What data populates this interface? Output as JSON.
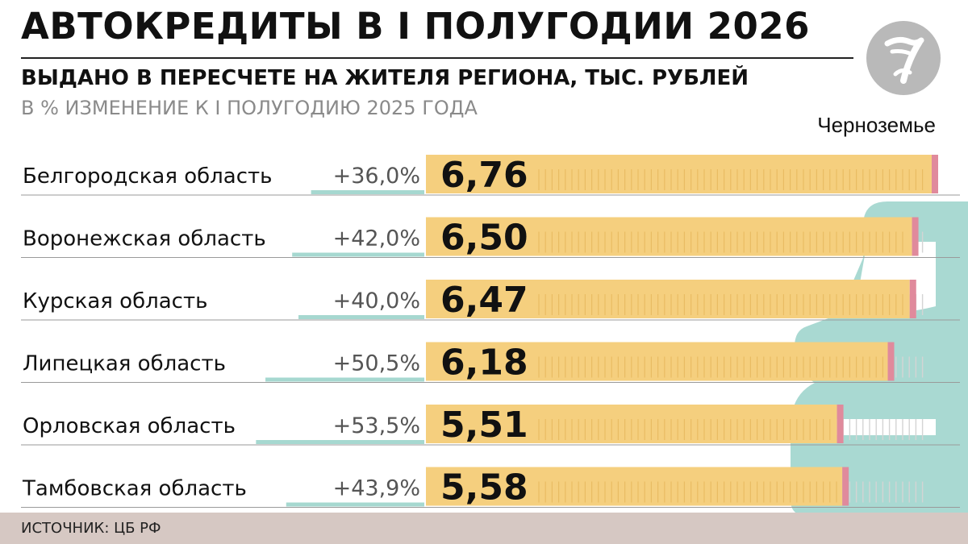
{
  "header": {
    "title": "АВТОКРЕДИТЫ В I ПОЛУГОДИИ 2026",
    "subtitle": "ВЫДАНО В ПЕРЕСЧЕТЕ НА ЖИТЕЛЯ РЕГИОНА, ТЫС. РУБЛЕЙ",
    "subtitle2": "В % ИЗМЕНЕНИЕ К I ПОЛУГОДИЮ 2025 ГОДА"
  },
  "brand": {
    "name": "Черноземье",
    "logo_icon": "circle-seven-logo-icon"
  },
  "footer": {
    "source": "ИСТОЧНИК: ЦБ РФ"
  },
  "colors": {
    "bar": "#f5cf7e",
    "bar_end": "#e08a9c",
    "change_line": "#a6d8d0",
    "car_shape": "#a9d9d2",
    "source_bar": "#d6c8c3",
    "tick_marks": "#d4d4d4"
  },
  "chart_data": {
    "type": "bar",
    "orientation": "horizontal",
    "categories": [
      "Белгородская область",
      "Воронежская область",
      "Курская область",
      "Липецкая область",
      "Орловская область",
      "Тамбовская область"
    ],
    "series": [
      {
        "values": [
          6.76,
          6.5,
          6.47,
          6.18,
          5.51,
          5.58
        ],
        "labels": [
          "6,76",
          "6,50",
          "6,47",
          "6,18",
          "5,51",
          "5,58"
        ]
      },
      {
        "values": [
          36.0,
          42.0,
          40.0,
          50.5,
          53.5,
          43.9
        ],
        "labels": [
          "+36,0%",
          "+42,0%",
          "+40,0%",
          "+50,5%",
          "+53,5%",
          "+43,9%"
        ]
      }
    ],
    "xlim": [
      0,
      6.76
    ]
  }
}
